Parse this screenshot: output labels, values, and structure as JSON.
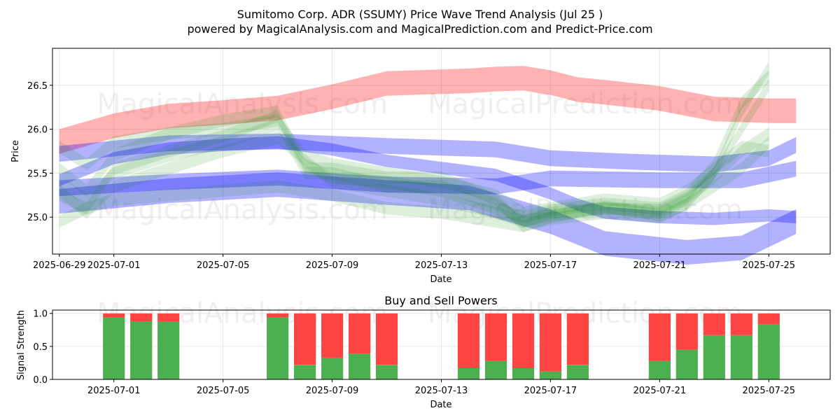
{
  "title_line1": "Sumitomo Corp. ADR (SSUMY) Price Wave Trend Analysis (Jul 25 )",
  "title_line2": "powered by MagicalAnalysis.com and MagicalPrediction.com and Predict-Price.com",
  "watermarks": [
    "MagicalAnalysis.com",
    "MagicalPrediction.com"
  ],
  "chart_data": [
    {
      "type": "area",
      "title": "",
      "xlabel": "Date",
      "ylabel": "Price",
      "xlim": [
        "2025-06-28T18:00",
        "2025-07-27T06:00"
      ],
      "ylim": [
        24.58,
        26.92
      ],
      "x_ticks": [
        "2025-06-29",
        "2025-07-01",
        "2025-07-05",
        "2025-07-09",
        "2025-07-13",
        "2025-07-17",
        "2025-07-21",
        "2025-07-25"
      ],
      "y_ticks": [
        25.0,
        25.5,
        26.0,
        26.5
      ],
      "grid": true,
      "colors": {
        "red": "#ff0000",
        "blue": "#0000ff",
        "green": "#008000"
      },
      "bands": [
        {
          "color": "red",
          "alpha": 0.3,
          "half_width": 0.14,
          "x": [
            "2025-06-29",
            "2025-07-01",
            "2025-07-03",
            "2025-07-05",
            "2025-07-07",
            "2025-07-09",
            "2025-07-11",
            "2025-07-13",
            "2025-07-14",
            "2025-07-15",
            "2025-07-16",
            "2025-07-17",
            "2025-07-18",
            "2025-07-19",
            "2025-07-21",
            "2025-07-22",
            "2025-07-23",
            "2025-07-24",
            "2025-07-25",
            "2025-07-26"
          ],
          "y": [
            25.86,
            26.04,
            26.15,
            26.19,
            26.24,
            26.37,
            26.52,
            26.54,
            26.55,
            26.57,
            26.58,
            26.53,
            26.45,
            26.42,
            26.35,
            26.29,
            26.23,
            26.22,
            26.21,
            26.21
          ]
        },
        {
          "color": "blue",
          "alpha": 0.3,
          "half_width": 0.07,
          "x": [
            "2025-06-29",
            "2025-07-01",
            "2025-07-03",
            "2025-07-05",
            "2025-07-07",
            "2025-07-09",
            "2025-07-11",
            "2025-07-13",
            "2025-07-15",
            "2025-07-17",
            "2025-07-18",
            "2025-07-19",
            "2025-07-21",
            "2025-07-23",
            "2025-07-25",
            "2025-07-26"
          ],
          "y": [
            25.42,
            25.67,
            25.78,
            25.82,
            25.85,
            25.77,
            25.64,
            25.56,
            25.48,
            25.27,
            25.14,
            25.05,
            25.0,
            24.98,
            25.02,
            25.0
          ]
        },
        {
          "color": "blue",
          "alpha": 0.3,
          "half_width": 0.09,
          "x": [
            "2025-06-29",
            "2025-07-03",
            "2025-07-07",
            "2025-07-11",
            "2025-07-15",
            "2025-07-17",
            "2025-07-20",
            "2025-07-23",
            "2025-07-25",
            "2025-07-26"
          ],
          "y": [
            25.72,
            25.84,
            25.86,
            25.81,
            25.77,
            25.67,
            25.63,
            25.6,
            25.67,
            25.82
          ]
        },
        {
          "color": "blue",
          "alpha": 0.3,
          "half_width": 0.09,
          "x": [
            "2025-06-29",
            "2025-07-03",
            "2025-07-07",
            "2025-07-11",
            "2025-07-15",
            "2025-07-17",
            "2025-07-21",
            "2025-07-24",
            "2025-07-26"
          ],
          "y": [
            25.33,
            25.4,
            25.45,
            25.37,
            25.35,
            25.44,
            25.42,
            25.42,
            25.55
          ]
        },
        {
          "color": "blue",
          "alpha": 0.3,
          "half_width": 0.14,
          "x": [
            "2025-06-29",
            "2025-07-03",
            "2025-07-07",
            "2025-07-11",
            "2025-07-14",
            "2025-07-17",
            "2025-07-19",
            "2025-07-22",
            "2025-07-24",
            "2025-07-26"
          ],
          "y": [
            25.18,
            25.3,
            25.37,
            25.28,
            25.22,
            24.95,
            24.7,
            24.6,
            24.65,
            24.95
          ]
        },
        {
          "color": "green",
          "alpha": 0.13,
          "half_width": 0.07,
          "x": [
            "2025-06-29",
            "2025-06-30",
            "2025-07-01",
            "2025-07-03",
            "2025-07-05",
            "2025-07-07",
            "2025-07-08",
            "2025-07-09",
            "2025-07-11",
            "2025-07-13",
            "2025-07-15",
            "2025-07-16",
            "2025-07-17",
            "2025-07-19",
            "2025-07-21",
            "2025-07-22",
            "2025-07-23",
            "2025-07-24",
            "2025-07-25"
          ],
          "y": [
            25.25,
            25.1,
            25.55,
            25.75,
            25.92,
            26.15,
            25.55,
            25.55,
            25.45,
            25.45,
            25.2,
            24.9,
            25.0,
            25.12,
            25.02,
            25.15,
            25.5,
            26.2,
            26.7
          ]
        },
        {
          "color": "green",
          "alpha": 0.13,
          "half_width": 0.07,
          "x": [
            "2025-06-29",
            "2025-06-30",
            "2025-07-01",
            "2025-07-03",
            "2025-07-05",
            "2025-07-07",
            "2025-07-08",
            "2025-07-09",
            "2025-07-11",
            "2025-07-13",
            "2025-07-15",
            "2025-07-16",
            "2025-07-17",
            "2025-07-19",
            "2025-07-21",
            "2025-07-22",
            "2025-07-23",
            "2025-07-24",
            "2025-07-25"
          ],
          "y": [
            25.55,
            25.3,
            25.7,
            25.95,
            26.1,
            26.2,
            25.6,
            25.45,
            25.4,
            25.3,
            25.1,
            25.0,
            25.08,
            25.15,
            25.1,
            25.25,
            25.6,
            26.3,
            26.6
          ]
        },
        {
          "color": "green",
          "alpha": 0.13,
          "half_width": 0.07,
          "x": [
            "2025-06-29",
            "2025-06-30",
            "2025-07-01",
            "2025-07-03",
            "2025-07-05",
            "2025-07-07",
            "2025-07-08",
            "2025-07-09",
            "2025-07-11",
            "2025-07-13",
            "2025-07-15",
            "2025-07-16",
            "2025-07-17",
            "2025-07-19",
            "2025-07-21",
            "2025-07-22",
            "2025-07-23",
            "2025-07-24",
            "2025-07-25"
          ],
          "y": [
            25.3,
            25.05,
            25.35,
            25.55,
            25.75,
            25.9,
            25.65,
            25.4,
            25.3,
            25.2,
            25.05,
            24.95,
            25.05,
            25.1,
            25.05,
            25.2,
            25.45,
            25.75,
            25.95
          ]
        },
        {
          "color": "green",
          "alpha": 0.13,
          "half_width": 0.07,
          "x": [
            "2025-06-29",
            "2025-06-30",
            "2025-07-01",
            "2025-07-03",
            "2025-07-05",
            "2025-07-07",
            "2025-07-08",
            "2025-07-09",
            "2025-07-11",
            "2025-07-13",
            "2025-07-15",
            "2025-07-16",
            "2025-07-17",
            "2025-07-19",
            "2025-07-21",
            "2025-07-22",
            "2025-07-23",
            "2025-07-24",
            "2025-07-25"
          ],
          "y": [
            24.95,
            25.1,
            25.2,
            25.25,
            25.3,
            25.35,
            25.3,
            25.25,
            25.1,
            25.05,
            24.95,
            24.9,
            24.98,
            25.05,
            25.0,
            25.15,
            25.35,
            25.55,
            25.85
          ]
        },
        {
          "color": "green",
          "alpha": 0.13,
          "half_width": 0.07,
          "x": [
            "2025-06-29",
            "2025-06-30",
            "2025-07-01",
            "2025-07-03",
            "2025-07-05",
            "2025-07-07",
            "2025-07-08",
            "2025-07-09",
            "2025-07-11",
            "2025-07-13",
            "2025-07-15",
            "2025-07-16",
            "2025-07-17",
            "2025-07-19",
            "2025-07-21",
            "2025-07-22",
            "2025-07-23",
            "2025-07-24",
            "2025-07-25"
          ],
          "y": [
            25.8,
            25.6,
            25.85,
            25.95,
            26.0,
            26.1,
            25.7,
            25.6,
            25.5,
            25.4,
            25.25,
            25.05,
            25.1,
            25.2,
            25.15,
            25.3,
            25.55,
            25.8,
            25.75
          ]
        },
        {
          "color": "green",
          "alpha": 0.13,
          "half_width": 0.07,
          "x": [
            "2025-06-29",
            "2025-06-30",
            "2025-07-01",
            "2025-07-03",
            "2025-07-05",
            "2025-07-07",
            "2025-07-08",
            "2025-07-09",
            "2025-07-11",
            "2025-07-13",
            "2025-07-15",
            "2025-07-16",
            "2025-07-17",
            "2025-07-19",
            "2025-07-21",
            "2025-07-22",
            "2025-07-23",
            "2025-07-24",
            "2025-07-25"
          ],
          "y": [
            25.4,
            25.2,
            25.5,
            25.7,
            25.85,
            26.05,
            25.5,
            25.5,
            25.35,
            25.35,
            25.15,
            24.95,
            25.02,
            25.1,
            25.08,
            25.22,
            25.5,
            26.0,
            26.5
          ]
        }
      ]
    },
    {
      "type": "bar",
      "title": "Buy and Sell Powers",
      "xlabel": "Date",
      "ylabel": "Signal Strength",
      "xlim": [
        "2025-06-28T18:00",
        "2025-07-27T06:00"
      ],
      "ylim": [
        0,
        1.05
      ],
      "x_ticks": [
        "2025-07-01",
        "2025-07-05",
        "2025-07-09",
        "2025-07-13",
        "2025-07-17",
        "2025-07-21",
        "2025-07-25"
      ],
      "y_ticks": [
        0.0,
        0.5,
        1.0
      ],
      "grid": true,
      "colors": {
        "buy": "#4caf50",
        "sell": "#ff4444"
      },
      "categories": [
        "2025-07-01",
        "2025-07-02",
        "2025-07-03",
        "2025-07-07",
        "2025-07-08",
        "2025-07-09",
        "2025-07-10",
        "2025-07-11",
        "2025-07-14",
        "2025-07-15",
        "2025-07-16",
        "2025-07-17",
        "2025-07-18",
        "2025-07-21",
        "2025-07-22",
        "2025-07-23",
        "2025-07-24",
        "2025-07-25"
      ],
      "series": [
        {
          "name": "",
          "values": [
            0.94,
            0.88,
            0.88,
            0.94,
            0.22,
            0.33,
            0.39,
            0.22,
            0.17,
            0.28,
            0.17,
            0.12,
            0.22,
            0.28,
            0.45,
            0.67,
            0.67,
            0.83
          ]
        },
        {
          "name": "",
          "values": [
            0.06,
            0.12,
            0.12,
            0.06,
            0.78,
            0.67,
            0.61,
            0.78,
            0.83,
            0.72,
            0.83,
            0.88,
            0.78,
            0.72,
            0.55,
            0.33,
            0.33,
            0.17
          ]
        }
      ]
    }
  ]
}
